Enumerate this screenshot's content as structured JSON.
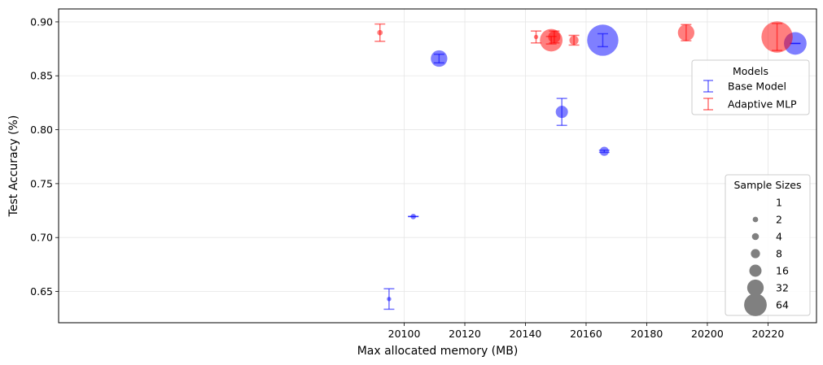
{
  "chart_data": {
    "type": "scatter",
    "title": "",
    "xlabel": "Max allocated memory (MB)",
    "ylabel": "Test Accuracy (%)",
    "xlim": [
      19986,
      20236
    ],
    "ylim": [
      0.621,
      0.912
    ],
    "xticks": [
      20100,
      20120,
      20140,
      20160,
      20180,
      20200,
      20220
    ],
    "yticks": [
      0.65,
      0.7,
      0.75,
      0.8,
      0.85,
      0.9
    ],
    "xtick_labels": [
      "20100",
      "20120",
      "20140",
      "20160",
      "20180",
      "20200",
      "20220"
    ],
    "ytick_labels": [
      "0.65",
      "0.70",
      "0.75",
      "0.80",
      "0.85",
      "0.90"
    ],
    "grid": true,
    "series": [
      {
        "name": "Base Model",
        "color": "#0000ff",
        "points": [
          {
            "x": 20095,
            "y": 0.643,
            "err": 0.0095,
            "size": 1
          },
          {
            "x": 20103,
            "y": 0.7195,
            "err": 0.0,
            "size": 2
          },
          {
            "x": 20111.5,
            "y": 0.866,
            "err": 0.004,
            "size": 32
          },
          {
            "x": 20152,
            "y": 0.8165,
            "err": 0.0125,
            "size": 16
          },
          {
            "x": 20166,
            "y": 0.78,
            "err": 0.001,
            "size": 8
          },
          {
            "x": 20165.5,
            "y": 0.883,
            "err": 0.006,
            "size": 128
          },
          {
            "x": 20229,
            "y": 0.88,
            "err": 0.0,
            "size": 64
          }
        ]
      },
      {
        "name": "Adaptive MLP",
        "color": "#ff0000",
        "points": [
          {
            "x": 20092,
            "y": 0.89,
            "err": 0.008,
            "size": 2
          },
          {
            "x": 20143.5,
            "y": 0.886,
            "err": 0.0055,
            "size": 1
          },
          {
            "x": 20148.5,
            "y": 0.883,
            "err": 0.0035,
            "size": 64
          },
          {
            "x": 20149.5,
            "y": 0.886,
            "err": 0.0055,
            "size": 16
          },
          {
            "x": 20156,
            "y": 0.883,
            "err": 0.0045,
            "size": 8
          },
          {
            "x": 20193,
            "y": 0.89,
            "err": 0.0075,
            "size": 32
          },
          {
            "x": 20223,
            "y": 0.886,
            "err": 0.0125,
            "size": 128
          }
        ]
      }
    ],
    "legend_models": {
      "title": "Models",
      "placement": "right-upper",
      "entries": [
        "Base Model",
        "Adaptive MLP"
      ]
    },
    "legend_sizes": {
      "title": "Sample Sizes",
      "placement": "bottom-right",
      "entries": [
        {
          "label": "1",
          "size": 1
        },
        {
          "label": "2",
          "size": 2
        },
        {
          "label": "4",
          "size": 4
        },
        {
          "label": "8",
          "size": 8
        },
        {
          "label": "16",
          "size": 16
        },
        {
          "label": "32",
          "size": 32
        },
        {
          "label": "64",
          "size": 64
        }
      ]
    }
  }
}
